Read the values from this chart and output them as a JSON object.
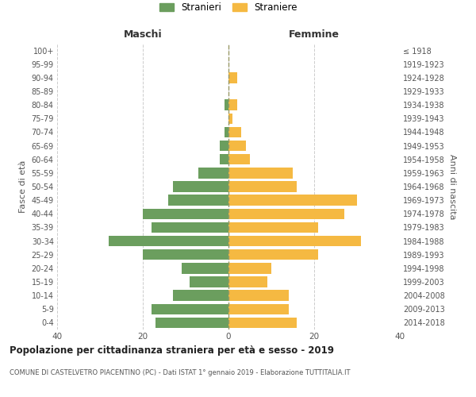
{
  "age_groups": [
    "0-4",
    "5-9",
    "10-14",
    "15-19",
    "20-24",
    "25-29",
    "30-34",
    "35-39",
    "40-44",
    "45-49",
    "50-54",
    "55-59",
    "60-64",
    "65-69",
    "70-74",
    "75-79",
    "80-84",
    "85-89",
    "90-94",
    "95-99",
    "100+"
  ],
  "birth_years": [
    "2014-2018",
    "2009-2013",
    "2004-2008",
    "1999-2003",
    "1994-1998",
    "1989-1993",
    "1984-1988",
    "1979-1983",
    "1974-1978",
    "1969-1973",
    "1964-1968",
    "1959-1963",
    "1954-1958",
    "1949-1953",
    "1944-1948",
    "1939-1943",
    "1934-1938",
    "1929-1933",
    "1924-1928",
    "1919-1923",
    "≤ 1918"
  ],
  "maschi": [
    17,
    18,
    13,
    9,
    11,
    20,
    28,
    18,
    20,
    14,
    13,
    7,
    2,
    2,
    1,
    0,
    1,
    0,
    0,
    0,
    0
  ],
  "femmine": [
    16,
    14,
    14,
    9,
    10,
    21,
    31,
    21,
    27,
    30,
    16,
    15,
    5,
    4,
    3,
    1,
    2,
    0,
    2,
    0,
    0
  ],
  "maschi_color": "#6b9e5e",
  "femmine_color": "#f5b942",
  "background_color": "#ffffff",
  "grid_color": "#cccccc",
  "dashed_line_color": "#999966",
  "title": "Popolazione per cittadinanza straniera per età e sesso - 2019",
  "subtitle": "COMUNE DI CASTELVETRO PIACENTINO (PC) - Dati ISTAT 1° gennaio 2019 - Elaborazione TUTTITALIA.IT",
  "xlabel_left": "Maschi",
  "xlabel_right": "Femmine",
  "ylabel_left": "Fasce di età",
  "ylabel_right": "Anni di nascita",
  "legend_stranieri": "Stranieri",
  "legend_straniere": "Straniere",
  "xlim": 40
}
